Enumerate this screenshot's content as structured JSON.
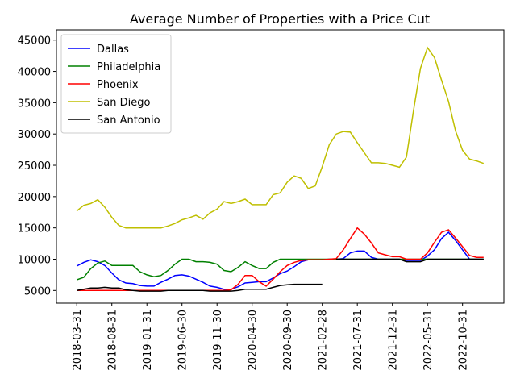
{
  "chart_data": {
    "type": "line",
    "title": "Average Number of Properties with a Price Cut",
    "categories": [
      "2018-03-31",
      null,
      null,
      null,
      null,
      "2018-08-31",
      null,
      null,
      null,
      null,
      "2019-01-31",
      null,
      null,
      null,
      null,
      "2019-06-30",
      null,
      null,
      null,
      null,
      "2019-11-30",
      null,
      null,
      null,
      null,
      "2020-04-30",
      null,
      null,
      null,
      null,
      "2020-09-30",
      null,
      null,
      null,
      null,
      "2021-02-28",
      null,
      null,
      null,
      null,
      "2021-07-31",
      null,
      null,
      null,
      null,
      "2021-12-31",
      null,
      null,
      null,
      null,
      "2022-05-31",
      null,
      null,
      null,
      null,
      "2022-10-31",
      null,
      null,
      null
    ],
    "series": [
      {
        "name": "Dallas",
        "color": "#0000ff",
        "values": [
          8900,
          9500,
          9900,
          9600,
          9000,
          7800,
          6700,
          6200,
          6100,
          5800,
          5700,
          5700,
          6300,
          6800,
          7400,
          7500,
          7300,
          6800,
          6300,
          5700,
          5500,
          5200,
          5200,
          5600,
          6200,
          6300,
          6400,
          6400,
          7000,
          7700,
          8100,
          8800,
          9600,
          9900,
          9900,
          9900,
          10000,
          10000,
          10100,
          11000,
          11300,
          11300,
          10300,
          10000,
          10000,
          10000,
          10000,
          9800,
          9800,
          9800,
          10500,
          11500,
          13300,
          14300,
          13000,
          11500,
          10000,
          10000,
          10000
        ]
      },
      {
        "name": "Philadelphia",
        "color": "#008000",
        "values": [
          6700,
          7100,
          8500,
          9400,
          9700,
          9000,
          9000,
          9000,
          9000,
          8000,
          7500,
          7200,
          7400,
          8200,
          9200,
          10000,
          10000,
          9600,
          9600,
          9500,
          9200,
          8200,
          8000,
          8700,
          9600,
          9000,
          8500,
          8500,
          9500,
          10000,
          10000,
          10000,
          10000,
          10000,
          10000,
          10000,
          10000,
          10000,
          10000,
          10000,
          10000,
          10000,
          10000,
          10000,
          10000,
          10000,
          10000,
          10000,
          10000,
          10000,
          10000,
          10000,
          10000,
          10000,
          10000,
          10000,
          10000,
          10000,
          10000
        ]
      },
      {
        "name": "Phoenix",
        "color": "#ff0000",
        "values": [
          5000,
          5000,
          5000,
          5000,
          5000,
          5000,
          5000,
          5000,
          5000,
          5000,
          5000,
          5000,
          5000,
          5000,
          5000,
          5000,
          5000,
          5000,
          5000,
          5000,
          5000,
          5000,
          5100,
          6000,
          7400,
          7400,
          6400,
          5700,
          6800,
          8000,
          9000,
          9500,
          9800,
          9900,
          9900,
          9900,
          10000,
          10100,
          11500,
          13300,
          15000,
          14000,
          12600,
          11000,
          10700,
          10400,
          10400,
          10000,
          10000,
          10000,
          11000,
          12700,
          14300,
          14700,
          13400,
          12000,
          10600,
          10300,
          10300
        ]
      },
      {
        "name": "San Diego",
        "color": "#bfbf00",
        "values": [
          17700,
          18600,
          18900,
          19500,
          18300,
          16700,
          15400,
          15000,
          15000,
          15000,
          15000,
          15000,
          15000,
          15300,
          15700,
          16300,
          16600,
          17000,
          16400,
          17400,
          18000,
          19200,
          18900,
          19200,
          19600,
          18700,
          18700,
          18700,
          20300,
          20600,
          22300,
          23300,
          22900,
          21300,
          21700,
          24800,
          28300,
          30000,
          30400,
          30300,
          28600,
          27000,
          25400,
          25400,
          25300,
          25000,
          24700,
          26300,
          33700,
          40500,
          43800,
          42200,
          38600,
          35200,
          30500,
          27400,
          26000,
          25700,
          25300
        ]
      },
      {
        "name": "San Antonio",
        "color": "#000000",
        "values": [
          5000,
          5200,
          5400,
          5400,
          5500,
          5400,
          5400,
          5100,
          5000,
          4900,
          4900,
          4900,
          4900,
          5000,
          5000,
          5000,
          5000,
          5000,
          5000,
          4900,
          4900,
          4900,
          4900,
          5000,
          5200,
          5200,
          5200,
          5200,
          5500,
          5800,
          5900,
          6000,
          6000,
          6000,
          6000,
          6000,
          null,
          10000,
          10000,
          10000,
          10000,
          10000,
          10000,
          10000,
          10000,
          10000,
          10000,
          9600,
          9600,
          9600,
          10000,
          10000,
          10000,
          10000,
          10000,
          10000,
          10000,
          10000,
          10000
        ]
      }
    ],
    "ylim": [
      2980,
      46640
    ],
    "yticks": [
      5000,
      10000,
      15000,
      20000,
      25000,
      30000,
      35000,
      40000,
      45000
    ],
    "grid": false,
    "legend": "upper left"
  }
}
